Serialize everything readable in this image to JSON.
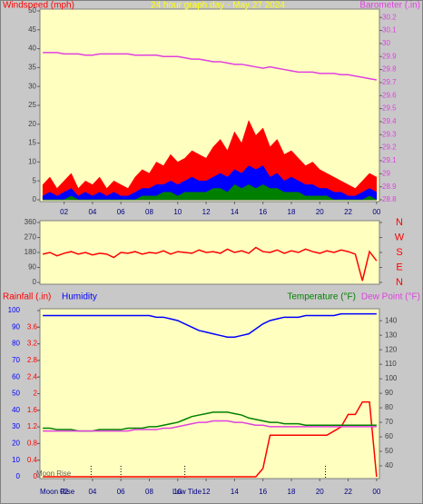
{
  "chart_data": [
    {
      "type": "area",
      "title": "24 hour graph day - May 27 2024",
      "ylabel": "Windspeed (mph)",
      "y2label": "Barometer (.in)",
      "x": [
        0.5,
        1,
        1.5,
        2,
        2.5,
        3,
        3.5,
        4,
        4.5,
        5,
        5.5,
        6,
        6.5,
        7,
        7.5,
        8,
        8.5,
        9,
        9.5,
        10,
        10.5,
        11,
        11.5,
        12,
        12.5,
        13,
        13.5,
        14,
        14.5,
        15,
        15.5,
        16,
        16.5,
        17,
        17.5,
        18,
        18.5,
        19,
        19.5,
        20,
        20.5,
        21,
        21.5,
        22,
        22.5,
        23,
        23.5,
        24
      ],
      "xlim": [
        0.3,
        24.2
      ],
      "xticks": [
        {
          "value": 2,
          "label": "02"
        },
        {
          "value": 4,
          "label": "04"
        },
        {
          "value": 6,
          "label": "06"
        },
        {
          "value": 8,
          "label": "08"
        },
        10,
        12,
        14,
        16,
        18,
        20,
        22,
        {
          "value": 24,
          "label": "00"
        }
      ],
      "ylim": [
        0,
        50
      ],
      "yticks": [
        0,
        5,
        10,
        15,
        20,
        25,
        30,
        35,
        40,
        45,
        50
      ],
      "y2lim": [
        28.8,
        30.25
      ],
      "y2ticks": [
        28.8,
        28.9,
        29,
        29.1,
        29.2,
        29.3,
        29.4,
        29.5,
        29.6,
        29.7,
        29.8,
        29.9,
        30,
        30.1,
        30.2
      ],
      "series": [
        {
          "color": "#ff0000",
          "values": [
            4,
            6,
            3,
            5,
            7,
            3,
            5,
            4,
            6,
            3,
            5,
            4,
            3,
            6,
            8,
            7,
            10,
            9,
            12,
            10,
            11,
            13,
            12,
            11,
            14,
            16,
            13,
            18,
            15,
            21,
            17,
            19,
            14,
            16,
            12,
            13,
            11,
            9,
            10,
            8,
            7,
            6,
            5,
            4,
            3,
            5,
            7,
            6
          ]
        },
        {
          "color": "#0000ff",
          "values": [
            1,
            2,
            1,
            2,
            3,
            1,
            2,
            1,
            2,
            1,
            2,
            1,
            1,
            2,
            3,
            3,
            4,
            4,
            5,
            4,
            5,
            6,
            5,
            5,
            6,
            7,
            6,
            8,
            7,
            9,
            8,
            9,
            6,
            7,
            5,
            6,
            5,
            4,
            4,
            3,
            3,
            2,
            2,
            1,
            1,
            2,
            3,
            2
          ]
        },
        {
          "color": "#008000",
          "values": [
            0,
            0,
            0,
            0,
            1,
            0,
            0,
            0,
            0,
            0,
            0,
            0,
            0,
            0,
            1,
            1,
            1,
            2,
            2,
            1,
            2,
            2,
            2,
            2,
            3,
            3,
            2,
            4,
            3,
            4,
            3,
            4,
            3,
            3,
            2,
            2,
            2,
            1,
            1,
            1,
            1,
            0,
            0,
            0,
            0,
            0,
            1,
            0
          ]
        },
        {
          "color": "#e040e0",
          "axis": "y2",
          "values": [
            29.93,
            29.93,
            29.93,
            29.92,
            29.92,
            29.92,
            29.91,
            29.91,
            29.92,
            29.92,
            29.92,
            29.92,
            29.92,
            29.91,
            29.91,
            29.91,
            29.91,
            29.9,
            29.9,
            29.9,
            29.89,
            29.88,
            29.88,
            29.87,
            29.86,
            29.86,
            29.85,
            29.84,
            29.84,
            29.83,
            29.82,
            29.81,
            29.82,
            29.81,
            29.8,
            29.79,
            29.78,
            29.78,
            29.78,
            29.77,
            29.77,
            29.77,
            29.76,
            29.76,
            29.75,
            29.74,
            29.73,
            29.72
          ]
        }
      ]
    },
    {
      "type": "line",
      "x": [
        0.5,
        1,
        1.5,
        2,
        2.5,
        3,
        3.5,
        4,
        4.5,
        5,
        5.5,
        6,
        6.5,
        7,
        7.5,
        8,
        8.5,
        9,
        9.5,
        10,
        10.5,
        11,
        11.5,
        12,
        12.5,
        13,
        13.5,
        14,
        14.5,
        15,
        15.5,
        16,
        16.5,
        17,
        17.5,
        18,
        18.5,
        19,
        19.5,
        20,
        20.5,
        21,
        21.5,
        22,
        22.5,
        23,
        23.5,
        24
      ],
      "xlim": [
        0.3,
        24.2
      ],
      "ylim": [
        0,
        360
      ],
      "yticks": [
        0,
        90,
        180,
        270,
        360
      ],
      "y2lim": [
        0,
        360
      ],
      "y2ticks": [
        {
          "value": 0,
          "label": "N"
        },
        {
          "value": 90,
          "label": "E"
        },
        {
          "value": 180,
          "label": "S"
        },
        {
          "value": 270,
          "label": "W"
        },
        {
          "value": 360,
          "label": "N"
        }
      ],
      "series": [
        {
          "color": "#ff0000",
          "values": [
            170,
            180,
            160,
            175,
            185,
            170,
            180,
            165,
            175,
            170,
            150,
            180,
            175,
            185,
            170,
            180,
            175,
            190,
            170,
            185,
            180,
            175,
            195,
            180,
            185,
            175,
            200,
            180,
            190,
            175,
            210,
            185,
            180,
            195,
            175,
            190,
            180,
            200,
            185,
            175,
            190,
            180,
            195,
            185,
            170,
            10,
            185,
            130
          ]
        }
      ]
    },
    {
      "type": "line",
      "x": [
        0.5,
        1,
        1.5,
        2,
        2.5,
        3,
        3.5,
        4,
        4.5,
        5,
        5.5,
        6,
        6.5,
        7,
        7.5,
        8,
        8.5,
        9,
        9.5,
        10,
        10.5,
        11,
        11.5,
        12,
        12.5,
        13,
        13.5,
        14,
        14.5,
        15,
        15.5,
        16,
        16.5,
        17,
        17.5,
        18,
        18.5,
        19,
        19.5,
        20,
        20.5,
        21,
        21.5,
        22,
        22.5,
        23,
        23.5,
        24
      ],
      "xlim": [
        0.3,
        24.2
      ],
      "xticks": [
        {
          "value": 2,
          "label": "02"
        },
        {
          "value": 4,
          "label": "04"
        },
        {
          "value": 6,
          "label": "06"
        },
        {
          "value": 8,
          "label": "08"
        },
        10,
        12,
        14,
        16,
        18,
        20,
        22,
        {
          "value": 24,
          "label": "00"
        }
      ],
      "ylim": [
        0,
        100
      ],
      "yticks": [
        0,
        10,
        20,
        30,
        40,
        50,
        60,
        70,
        80,
        90,
        100
      ],
      "y3lim": [
        0,
        4
      ],
      "y3ticks": [
        0,
        0.4,
        0.8,
        1.2,
        1.6,
        2,
        2.4,
        2.8,
        3.2,
        3.6
      ],
      "y2lim": [
        32.5,
        147
      ],
      "y2ticks": [
        40,
        50,
        60,
        70,
        80,
        90,
        100,
        110,
        120,
        130,
        140
      ],
      "annotations": [
        "Moon Rise",
        "Moon Rise",
        "Low Tide"
      ],
      "markers": [
        3.9,
        6,
        10.5,
        20.4
      ],
      "series": [
        {
          "name": "Rainfall (.in)",
          "color": "#ff0000",
          "axis": "y3",
          "values": [
            0,
            0,
            0,
            0,
            0,
            0,
            0,
            0,
            0,
            0,
            0,
            0,
            0,
            0,
            0,
            0,
            0,
            0,
            0,
            0,
            0,
            0,
            0,
            0,
            0,
            0,
            0,
            0,
            0,
            0,
            0,
            0.2,
            1,
            1,
            1,
            1,
            1,
            1,
            1,
            1,
            1,
            1.1,
            1.2,
            1.5,
            1.5,
            1.8,
            1.8,
            0
          ]
        },
        {
          "name": "Humidity",
          "color": "#0000ff",
          "values": [
            97,
            97,
            97,
            97,
            97,
            97,
            97,
            97,
            97,
            97,
            97,
            97,
            97,
            97,
            97,
            97,
            96,
            96,
            95,
            94,
            92,
            90,
            88,
            87,
            86,
            85,
            84,
            84,
            85,
            86,
            89,
            92,
            94,
            95,
            96,
            96,
            96,
            97,
            97,
            97,
            97,
            97,
            98,
            98,
            98,
            98,
            98,
            98
          ]
        },
        {
          "name": "Temperature (°F)",
          "color": "#008000",
          "axis": "y2",
          "values": [
            66,
            66,
            65,
            65,
            65,
            64,
            64,
            64,
            65,
            65,
            65,
            65,
            66,
            66,
            66,
            67,
            67,
            68,
            69,
            70,
            72,
            74,
            75,
            76,
            77,
            77,
            77,
            76,
            75,
            73,
            72,
            71,
            70,
            70,
            69,
            69,
            69,
            68,
            68,
            68,
            68,
            68,
            68,
            68,
            68,
            68,
            68,
            68
          ]
        },
        {
          "name": "Dew Point (°F)",
          "color": "#e040e0",
          "axis": "y2",
          "values": [
            64,
            64,
            64,
            64,
            64,
            64,
            64,
            64,
            64,
            64,
            64,
            64,
            64,
            65,
            65,
            65,
            65,
            66,
            66,
            67,
            68,
            69,
            70,
            70,
            71,
            71,
            71,
            70,
            70,
            69,
            68,
            68,
            67,
            67,
            67,
            67,
            67,
            67,
            67,
            67,
            67,
            67,
            67,
            67,
            67,
            67,
            67,
            67
          ]
        }
      ]
    }
  ]
}
